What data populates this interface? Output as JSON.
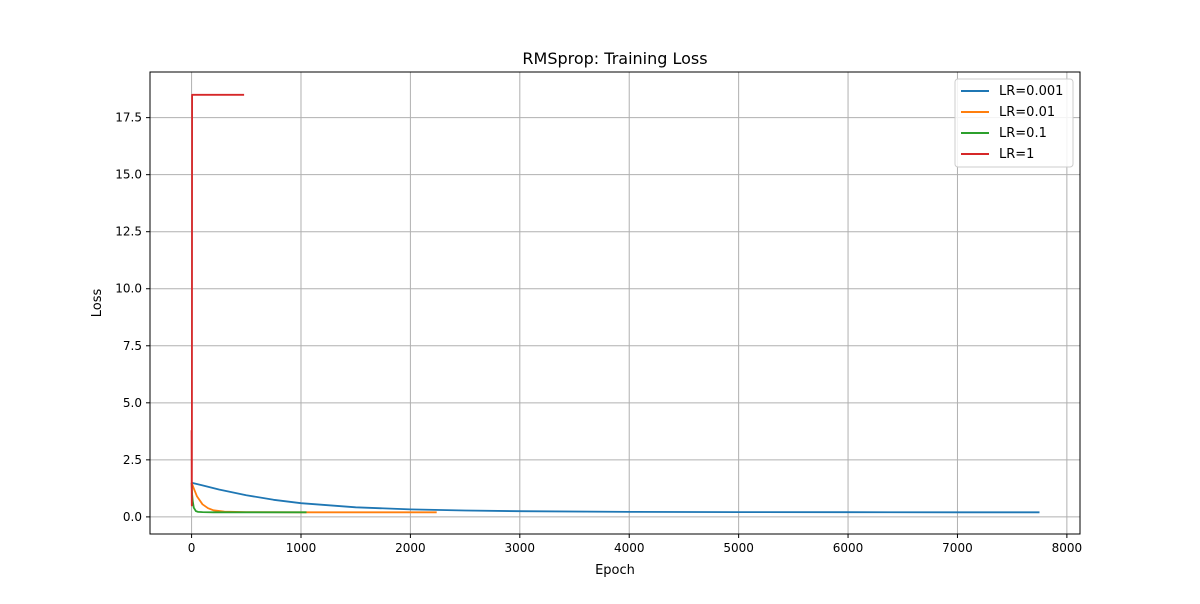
{
  "chart_data": {
    "type": "line",
    "title": "RMSprop: Training Loss",
    "xlabel": "Epoch",
    "ylabel": "Loss",
    "xlim": [
      -380,
      8120
    ],
    "ylim": [
      -0.75,
      19.5
    ],
    "xticks": [
      0,
      1000,
      2000,
      3000,
      4000,
      5000,
      6000,
      7000,
      8000
    ],
    "yticks": [
      0.0,
      2.5,
      5.0,
      7.5,
      10.0,
      12.5,
      15.0,
      17.5
    ],
    "xtick_labels": [
      "0",
      "1000",
      "2000",
      "3000",
      "4000",
      "5000",
      "6000",
      "7000",
      "8000"
    ],
    "ytick_labels": [
      "0.0",
      "2.5",
      "5.0",
      "7.5",
      "10.0",
      "12.5",
      "15.0",
      "17.5"
    ],
    "grid": true,
    "legend_position": "top-right",
    "series": [
      {
        "name": "LR=0.001",
        "color": "#1f77b4",
        "x": [
          0,
          100,
          250,
          500,
          750,
          1000,
          1500,
          2000,
          2500,
          3000,
          4000,
          5000,
          6000,
          7000,
          7750
        ],
        "y": [
          1.5,
          1.38,
          1.2,
          0.95,
          0.75,
          0.6,
          0.42,
          0.33,
          0.28,
          0.25,
          0.22,
          0.21,
          0.205,
          0.2,
          0.2
        ]
      },
      {
        "name": "LR=0.01",
        "color": "#ff7f0e",
        "x": [
          0,
          20,
          50,
          100,
          150,
          200,
          300,
          500,
          1000,
          1500,
          2000,
          2240
        ],
        "y": [
          1.5,
          1.25,
          0.9,
          0.55,
          0.38,
          0.29,
          0.23,
          0.21,
          0.2,
          0.2,
          0.2,
          0.2
        ]
      },
      {
        "name": "LR=0.1",
        "color": "#2ca02c",
        "x": [
          0,
          5,
          10,
          20,
          40,
          60,
          100,
          200,
          500,
          1050
        ],
        "y": [
          1.5,
          1.0,
          0.7,
          0.4,
          0.25,
          0.22,
          0.21,
          0.2,
          0.2,
          0.2
        ]
      },
      {
        "name": "LR=1",
        "color": "#d62728",
        "x": [
          0,
          1,
          2,
          3,
          5,
          8,
          480
        ],
        "y": [
          3.8,
          1.5,
          0.5,
          3.0,
          18.5,
          18.5,
          18.5
        ]
      }
    ]
  }
}
